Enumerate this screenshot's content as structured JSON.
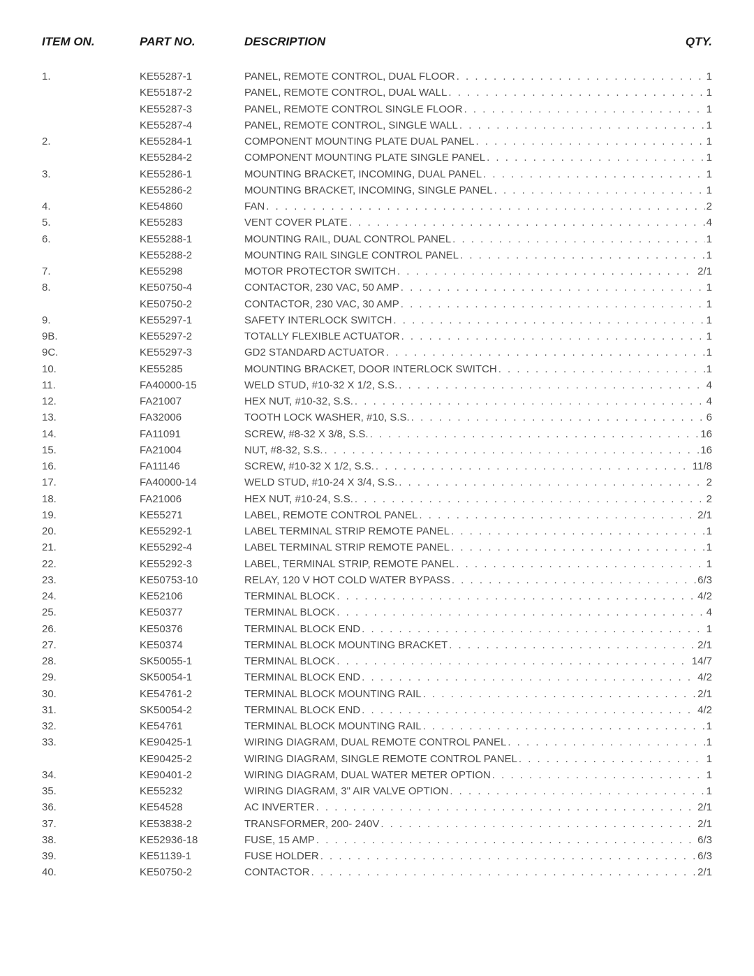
{
  "headers": {
    "item": "ITEM ON.",
    "part": "PART NO.",
    "desc": "DESCRIPTION",
    "qty": "QTY."
  },
  "rows": [
    {
      "item": "1.",
      "part": "KE55287-1",
      "desc": "PANEL, REMOTE CONTROL, DUAL FLOOR",
      "qty": "1"
    },
    {
      "item": "",
      "part": "KE55187-2",
      "desc": "PANEL, REMOTE CONTROL, DUAL WALL",
      "qty": "1"
    },
    {
      "item": "",
      "part": "KE55287-3",
      "desc": "PANEL, REMOTE CONTROL SINGLE FLOOR",
      "qty": "1"
    },
    {
      "item": "",
      "part": "KE55287-4",
      "desc": "PANEL, REMOTE CONTROL, SINGLE WALL",
      "qty": "1"
    },
    {
      "item": "2.",
      "part": "KE55284-1",
      "desc": "COMPONENT MOUNTING PLATE DUAL PANEL",
      "qty": "1"
    },
    {
      "item": "",
      "part": "KE55284-2",
      "desc": "COMPONENT MOUNTING PLATE SINGLE PANEL",
      "qty": "1"
    },
    {
      "item": "3.",
      "part": "KE55286-1",
      "desc": "MOUNTING BRACKET, INCOMING, DUAL PANEL",
      "qty": "1"
    },
    {
      "item": "",
      "part": "KE55286-2",
      "desc": "MOUNTING BRACKET, INCOMING, SINGLE PANEL",
      "qty": "1"
    },
    {
      "item": "4.",
      "part": "KE54860",
      "desc": "FAN",
      "qty": "2"
    },
    {
      "item": "5.",
      "part": "KE55283",
      "desc": "VENT COVER PLATE",
      "qty": "4"
    },
    {
      "item": "6.",
      "part": "KE55288-1",
      "desc": "MOUNTING RAIL, DUAL CONTROL PANEL",
      "qty": "1"
    },
    {
      "item": "",
      "part": "KE55288-2",
      "desc": "MOUNTING RAIL SINGLE CONTROL PANEL",
      "qty": "1"
    },
    {
      "item": "7.",
      "part": "KE55298",
      "desc": "MOTOR PROTECTOR SWITCH",
      "qty": "2/1"
    },
    {
      "item": "8.",
      "part": "KE50750-4",
      "desc": "CONTACTOR, 230 VAC, 50 AMP",
      "qty": "1"
    },
    {
      "item": "",
      "part": "KE50750-2",
      "desc": "CONTACTOR, 230 VAC, 30 AMP",
      "qty": "1"
    },
    {
      "item": "9.",
      "part": "KE55297-1",
      "desc": "SAFETY INTERLOCK SWITCH",
      "qty": "1"
    },
    {
      "item": "9B.",
      "part": "KE55297-2",
      "desc": "TOTALLY FLEXIBLE ACTUATOR",
      "qty": "1"
    },
    {
      "item": "9C.",
      "part": "KE55297-3",
      "desc": "GD2 STANDARD ACTUATOR",
      "qty": "1"
    },
    {
      "item": "10.",
      "part": "KE55285",
      "desc": "MOUNTING BRACKET, DOOR INTERLOCK SWITCH",
      "qty": "1"
    },
    {
      "item": "11.",
      "part": "FA40000-15",
      "desc": "WELD STUD, #10-32 X 1/2, S.S.",
      "qty": "4"
    },
    {
      "item": "12.",
      "part": "FA21007",
      "desc": "HEX NUT, #10-32, S.S.",
      "qty": "4"
    },
    {
      "item": "13.",
      "part": "FA32006",
      "desc": "TOOTH LOCK WASHER, #10, S.S.",
      "qty": "6"
    },
    {
      "item": "14.",
      "part": "FA11091",
      "desc": "SCREW, #8-32 X 3/8, S.S.",
      "qty": "16"
    },
    {
      "item": "15.",
      "part": "FA21004",
      "desc": "NUT, #8-32, S.S.",
      "qty": "16"
    },
    {
      "item": "16.",
      "part": "FA11146",
      "desc": "SCREW, #10-32 X 1/2, S.S.",
      "qty": "11/8"
    },
    {
      "item": "17.",
      "part": "FA40000-14",
      "desc": "WELD STUD, #10-24 X 3/4, S.S.",
      "qty": "2"
    },
    {
      "item": "18.",
      "part": "FA21006",
      "desc": "HEX NUT, #10-24, S.S.",
      "qty": "2"
    },
    {
      "item": "19.",
      "part": "KE55271",
      "desc": "LABEL, REMOTE CONTROL PANEL",
      "qty": "2/1"
    },
    {
      "item": "20.",
      "part": "KE55292-1",
      "desc": "LABEL TERMINAL STRIP REMOTE PANEL",
      "qty": "1"
    },
    {
      "item": "21.",
      "part": "KE55292-4",
      "desc": "LABEL TERMINAL STRIP REMOTE PANEL",
      "qty": "1"
    },
    {
      "item": "22.",
      "part": "KE55292-3",
      "desc": "LABEL, TERMINAL STRIP, REMOTE PANEL",
      "qty": "1"
    },
    {
      "item": "23.",
      "part": "KE50753-10",
      "desc": "RELAY, 120 V HOT COLD WATER BYPASS",
      "qty": "6/3"
    },
    {
      "item": "24.",
      "part": "KE52106",
      "desc": "TERMINAL BLOCK",
      "qty": "4/2"
    },
    {
      "item": "25.",
      "part": "KE50377",
      "desc": "TERMINAL BLOCK",
      "qty": "4"
    },
    {
      "item": "26.",
      "part": "KE50376",
      "desc": "TERMINAL BLOCK END",
      "qty": "1"
    },
    {
      "item": "27.",
      "part": "KE50374",
      "desc": "TERMINAL BLOCK MOUNTING BRACKET",
      "qty": "2/1"
    },
    {
      "item": "28.",
      "part": "SK50055-1",
      "desc": "TERMINAL BLOCK",
      "qty": "14/7"
    },
    {
      "item": "29.",
      "part": "SK50054-1",
      "desc": "TERMINAL BLOCK END",
      "qty": "4/2"
    },
    {
      "item": "30.",
      "part": "KE54761-2",
      "desc": "TERMINAL BLOCK MOUNTING RAIL",
      "qty": "2/1"
    },
    {
      "item": "31.",
      "part": "SK50054-2",
      "desc": "TERMINAL BLOCK END",
      "qty": "4/2"
    },
    {
      "item": "32.",
      "part": "KE54761",
      "desc": "TERMINAL BLOCK MOUNTING RAIL",
      "qty": "1"
    },
    {
      "item": "33.",
      "part": "KE90425-1",
      "desc": "WIRING DIAGRAM, DUAL REMOTE CONTROL PANEL",
      "qty": "1"
    },
    {
      "item": "",
      "part": "KE90425-2",
      "desc": "WIRING DIAGRAM, SINGLE REMOTE CONTROL PANEL",
      "qty": "1"
    },
    {
      "item": "34.",
      "part": "KE90401-2",
      "desc": "WIRING DIAGRAM, DUAL WATER METER OPTION",
      "qty": "1"
    },
    {
      "item": "35.",
      "part": "KE55232",
      "desc": "WIRING DIAGRAM, 3\" AIR VALVE OPTION",
      "qty": "1"
    },
    {
      "item": "36.",
      "part": "KE54528",
      "desc": "AC INVERTER",
      "qty": "2/1"
    },
    {
      "item": "37.",
      "part": "KE53838-2",
      "desc": "TRANSFORMER, 200- 240V",
      "qty": "2/1"
    },
    {
      "item": "38.",
      "part": "KE52936-18",
      "desc": "FUSE, 15 AMP",
      "qty": "6/3"
    },
    {
      "item": "39.",
      "part": "KE51139-1",
      "desc": "FUSE HOLDER",
      "qty": "6/3"
    },
    {
      "item": "40.",
      "part": "KE50750-2",
      "desc": "CONTACTOR",
      "qty": "2/1"
    }
  ]
}
